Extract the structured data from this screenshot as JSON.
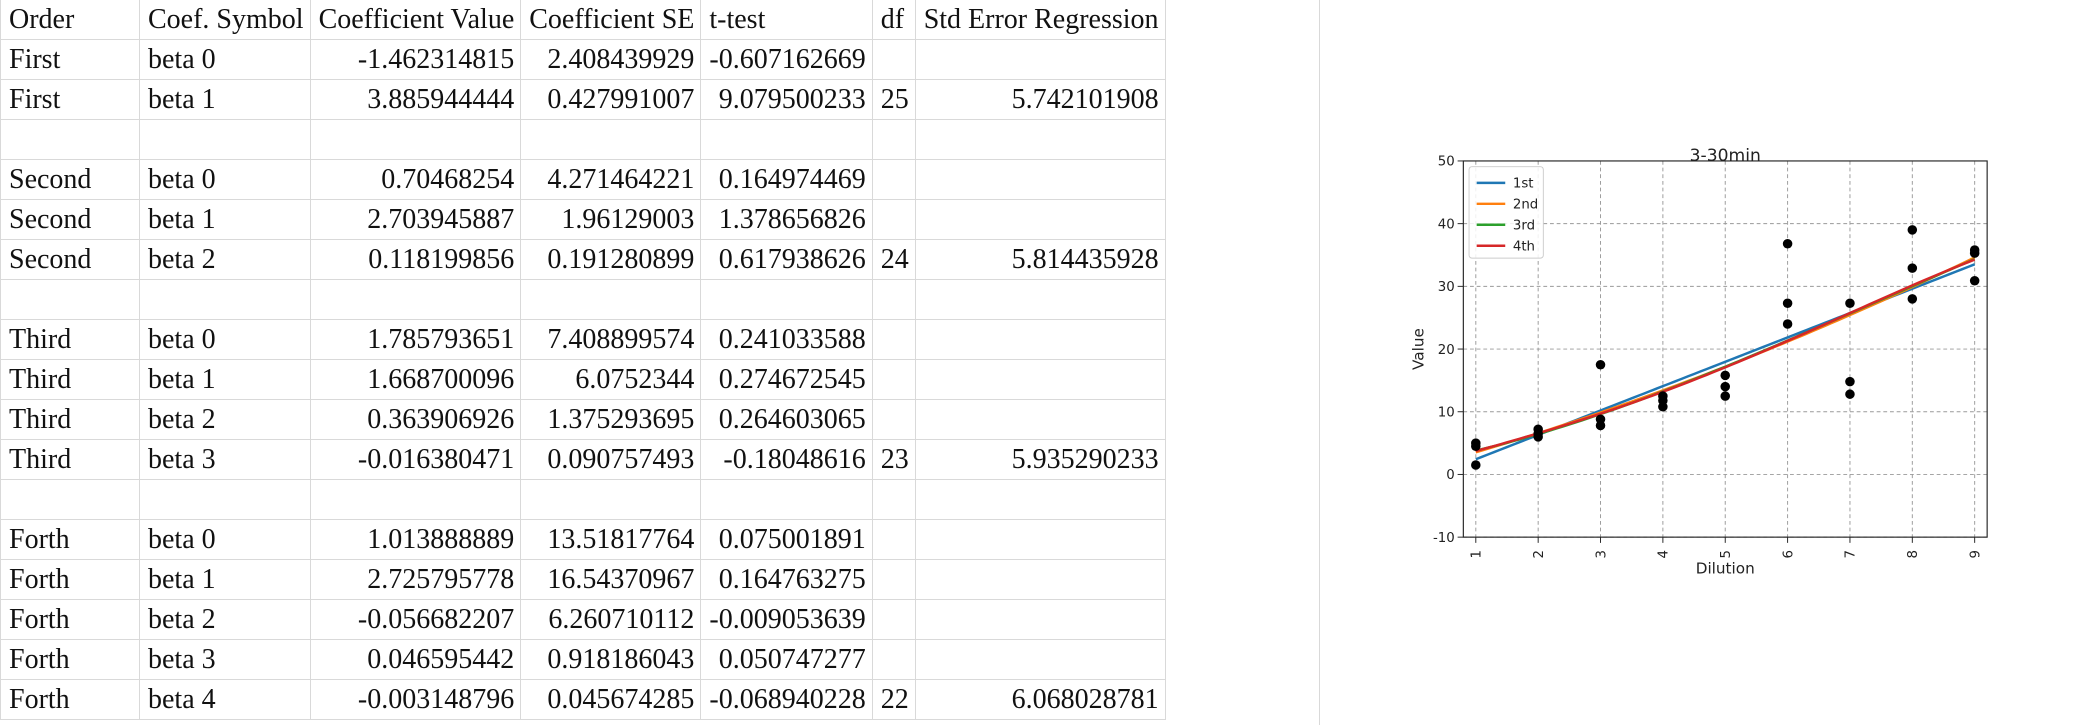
{
  "table": {
    "headers": [
      "Order",
      "Coef. Symbol",
      "Coefficient Value",
      "Coefficient SE",
      "t-test",
      "df",
      "Std Error Regression"
    ],
    "rows": [
      [
        "First",
        "beta 0",
        "-1.462314815",
        "2.408439929",
        "-0.607162669",
        "",
        ""
      ],
      [
        "First",
        "beta 1",
        "3.885944444",
        "0.427991007",
        "9.079500233",
        "25",
        "5.742101908"
      ],
      [
        "",
        "",
        "",
        "",
        "",
        "",
        ""
      ],
      [
        "Second",
        "beta 0",
        "0.70468254",
        "4.271464221",
        "0.164974469",
        "",
        ""
      ],
      [
        "Second",
        "beta 1",
        "2.703945887",
        "1.96129003",
        "1.378656826",
        "",
        ""
      ],
      [
        "Second",
        "beta 2",
        "0.118199856",
        "0.191280899",
        "0.617938626",
        "24",
        "5.814435928"
      ],
      [
        "",
        "",
        "",
        "",
        "",
        "",
        ""
      ],
      [
        "Third",
        "beta 0",
        "1.785793651",
        "7.408899574",
        "0.241033588",
        "",
        ""
      ],
      [
        "Third",
        "beta 1",
        "1.668700096",
        "6.0752344",
        "0.274672545",
        "",
        ""
      ],
      [
        "Third",
        "beta 2",
        "0.363906926",
        "1.375293695",
        "0.264603065",
        "",
        ""
      ],
      [
        "Third",
        "beta 3",
        "-0.016380471",
        "0.090757493",
        "-0.18048616",
        "23",
        "5.935290233"
      ],
      [
        "",
        "",
        "",
        "",
        "",
        "",
        ""
      ],
      [
        "Forth",
        "beta 0",
        "1.013888889",
        "13.51817764",
        "0.075001891",
        "",
        ""
      ],
      [
        "Forth",
        "beta 1",
        "2.725795778",
        "16.54370967",
        "0.164763275",
        "",
        ""
      ],
      [
        "Forth",
        "beta 2",
        "-0.056682207",
        "6.260710112",
        "-0.009053639",
        "",
        ""
      ],
      [
        "Forth",
        "beta 3",
        "0.046595442",
        "0.918186043",
        "0.050747277",
        "",
        ""
      ],
      [
        "Forth",
        "beta 4",
        "-0.003148796",
        "0.045674285",
        "-0.068940228",
        "22",
        "6.068028781"
      ]
    ]
  },
  "chart_data": {
    "type": "scatter",
    "title": "3-30min",
    "xlabel": "Dilution",
    "ylabel": "Value",
    "xlim": [
      0.8,
      9.2
    ],
    "ylim": [
      -10,
      50
    ],
    "xticks": [
      "1",
      "2",
      "3",
      "4",
      "5",
      "6",
      "7",
      "8",
      "9"
    ],
    "yticks": [
      "-10",
      "0",
      "10",
      "20",
      "30",
      "40",
      "50"
    ],
    "grid": true,
    "legend_position": "top-left",
    "points": [
      [
        1,
        1.5
      ],
      [
        1,
        4.5
      ],
      [
        1,
        5.0
      ],
      [
        2,
        6.0
      ],
      [
        2,
        6.5
      ],
      [
        2,
        7.2
      ],
      [
        3,
        7.8
      ],
      [
        3,
        8.8
      ],
      [
        3,
        17.5
      ],
      [
        4,
        10.8
      ],
      [
        4,
        11.8
      ],
      [
        4,
        12.5
      ],
      [
        5,
        12.5
      ],
      [
        5,
        14.0
      ],
      [
        5,
        15.8
      ],
      [
        6,
        24.0
      ],
      [
        6,
        27.3
      ],
      [
        6,
        36.8
      ],
      [
        7,
        12.8
      ],
      [
        7,
        14.8
      ],
      [
        7,
        27.3
      ],
      [
        8,
        28.0
      ],
      [
        8,
        32.9
      ],
      [
        8,
        39.0
      ],
      [
        9,
        30.9
      ],
      [
        9,
        35.3
      ],
      [
        9,
        35.8
      ]
    ],
    "series": [
      {
        "name": "1st",
        "color": "#1f77b4",
        "coefficients": [
          -1.462314815,
          3.885944444
        ]
      },
      {
        "name": "2nd",
        "color": "#ff7f0e",
        "coefficients": [
          0.70468254,
          2.703945887,
          0.118199856
        ]
      },
      {
        "name": "3rd",
        "color": "#2ca02c",
        "coefficients": [
          1.785793651,
          1.668700096,
          0.363906926,
          -0.016380471
        ]
      },
      {
        "name": "4th",
        "color": "#d62728",
        "coefficients": [
          1.013888889,
          2.725795778,
          -0.056682207,
          0.046595442,
          -0.003148796
        ]
      }
    ],
    "point_color": "#000000"
  }
}
